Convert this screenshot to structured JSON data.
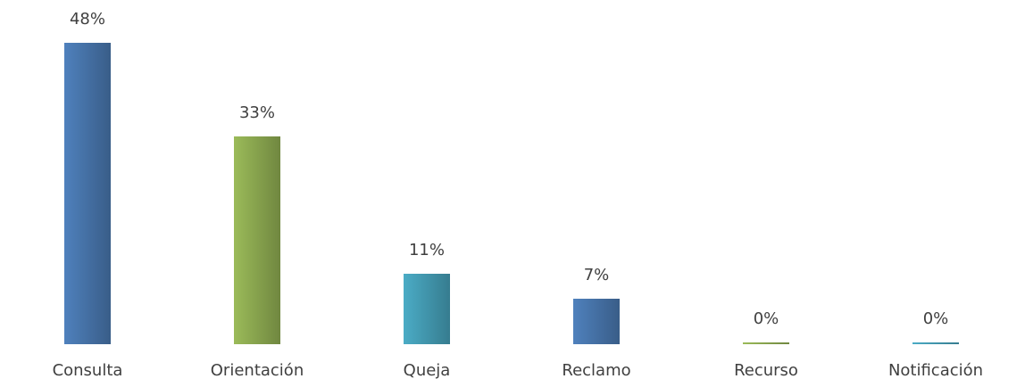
{
  "chart_data": {
    "type": "bar",
    "categories": [
      "Consulta",
      "Orientación",
      "Queja",
      "Reclamo",
      "Recurso",
      "Notificación"
    ],
    "values": [
      48,
      33,
      11,
      7,
      0,
      0
    ],
    "value_labels": [
      "48%",
      "33%",
      "11%",
      "7%",
      "0%",
      "0%"
    ],
    "colors": [
      "#4f81bd",
      "#9bbb59",
      "#4bacc6",
      "#4f81bd",
      "#9bbb59",
      "#4bacc6"
    ]
  }
}
